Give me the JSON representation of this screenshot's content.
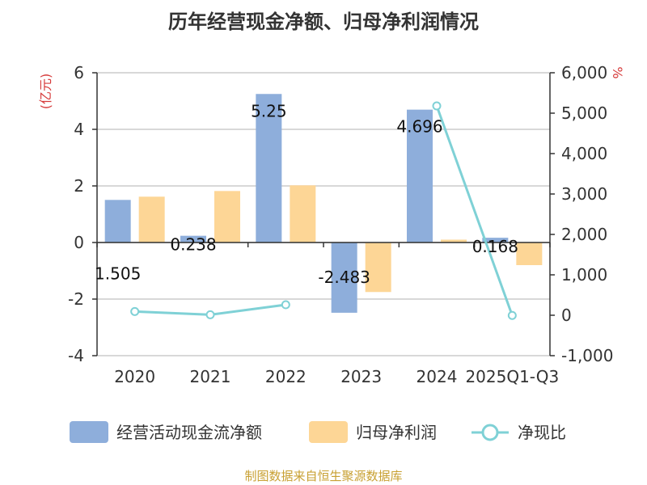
{
  "chart_data": {
    "type": "bar",
    "title": "历年经营现金净额、归母净利润情况",
    "categories": [
      "2020",
      "2021",
      "2022",
      "2023",
      "2024",
      "2025Q1-Q3"
    ],
    "left_axis": {
      "unit": "(亿元)",
      "ylim": [
        -4,
        6
      ],
      "ticks": [
        "6",
        "4",
        "2",
        "0",
        "-2",
        "-4"
      ],
      "tick_values": [
        6,
        4,
        2,
        0,
        -2,
        -4
      ]
    },
    "right_axis": {
      "unit": "%",
      "ylim": [
        -1000,
        6000
      ],
      "ticks": [
        "6,000",
        "5,000",
        "4,000",
        "3,000",
        "2,000",
        "1,000",
        "0",
        "-1,000"
      ],
      "tick_values": [
        6000,
        5000,
        4000,
        3000,
        2000,
        1000,
        0,
        -1000
      ]
    },
    "series": [
      {
        "name": "经营活动现金流净额",
        "kind": "bar",
        "axis": "left",
        "color": "#8eaedb",
        "values": [
          1.505,
          0.238,
          5.25,
          -2.483,
          4.696,
          0.168
        ],
        "labels": [
          "1.505",
          "0.238",
          "5.25",
          "-2.483",
          "4.696",
          "0.168"
        ]
      },
      {
        "name": "归母净利润",
        "kind": "bar",
        "axis": "left",
        "color": "#fdd696",
        "values": [
          1.62,
          1.82,
          2.02,
          -1.75,
          0.1,
          -0.8
        ]
      },
      {
        "name": "净现比",
        "kind": "line",
        "axis": "right",
        "color": "#7fd1d6",
        "values": [
          93,
          13,
          260,
          null,
          5180,
          -5
        ]
      }
    ],
    "grid": true,
    "legend_position": "bottom"
  },
  "source_text": "制图数据来自恒生聚源数据库",
  "colors": {
    "unit_text": "#d63a3a",
    "source_text": "#c8a032",
    "grid": "#cccccc",
    "axis": "#333333"
  }
}
